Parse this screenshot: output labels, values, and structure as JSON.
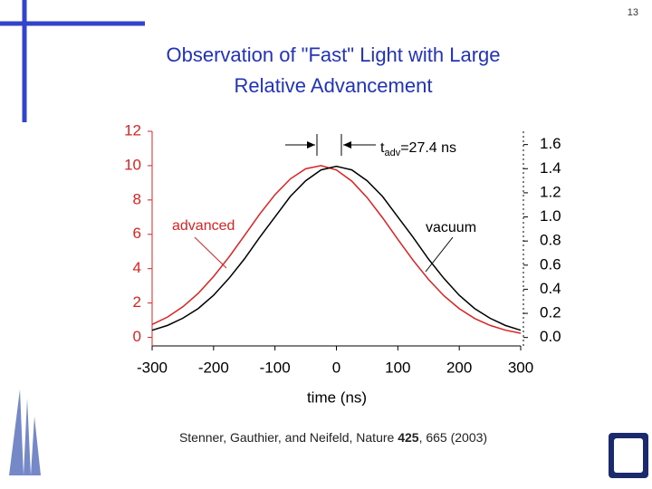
{
  "page_number": "13",
  "chart_data": {
    "type": "line",
    "title": [
      "Observation of \"Fast\" Light with Large",
      "Relative Advancement"
    ],
    "annotation": {
      "base": "t",
      "sub": "adv",
      "rest": "=27.4 ns"
    },
    "xlabel": "time (ns)",
    "citation": {
      "before": "Stenner, Gauthier, and Neifeld, Nature ",
      "volume": "425",
      "after": ", 665 (2003)"
    },
    "x": [
      -300,
      -275,
      -250,
      -225,
      -200,
      -175,
      -150,
      -125,
      -100,
      -75,
      -50,
      -25,
      0,
      25,
      50,
      75,
      100,
      125,
      150,
      175,
      200,
      225,
      250,
      275,
      300
    ],
    "series": [
      {
        "name": "advanced",
        "color": "#e02020",
        "axis": "y",
        "values": [
          0.75,
          1.18,
          1.78,
          2.56,
          3.54,
          4.67,
          5.91,
          7.17,
          8.31,
          9.23,
          9.82,
          10.0,
          9.75,
          9.1,
          8.14,
          6.97,
          5.71,
          4.48,
          3.37,
          2.42,
          1.67,
          1.1,
          0.7,
          0.42,
          0.24
        ]
      },
      {
        "name": "vacuum",
        "color": "#000000",
        "axis": "y2",
        "values": [
          0.06,
          0.1,
          0.16,
          0.24,
          0.35,
          0.49,
          0.65,
          0.83,
          1.0,
          1.17,
          1.3,
          1.39,
          1.42,
          1.39,
          1.3,
          1.17,
          1.0,
          0.83,
          0.65,
          0.49,
          0.35,
          0.24,
          0.16,
          0.1,
          0.06
        ]
      }
    ],
    "xlim": [
      -300,
      300
    ],
    "xticks": [
      -300,
      -200,
      -100,
      0,
      100,
      200,
      300
    ],
    "ylim": [
      -0.5,
      12
    ],
    "yticks": [
      0,
      2,
      4,
      6,
      8,
      10,
      12
    ],
    "y2lim": [
      -0.07,
      1.71
    ],
    "y2ticks": [
      {
        "value": 0,
        "label": "0.0"
      },
      {
        "value": 0.2,
        "label": "0.2"
      },
      {
        "value": 0.4,
        "label": "0.4"
      },
      {
        "value": 0.6,
        "label": "0.6"
      },
      {
        "value": 0.8,
        "label": "0.8"
      },
      {
        "value": 1.0,
        "label": "1.0"
      },
      {
        "value": 1.2,
        "label": "1.2"
      },
      {
        "value": 1.4,
        "label": "1.4"
      },
      {
        "value": 1.6,
        "label": "1.6"
      }
    ],
    "ytick_color": "#e02020",
    "grid": false
  }
}
